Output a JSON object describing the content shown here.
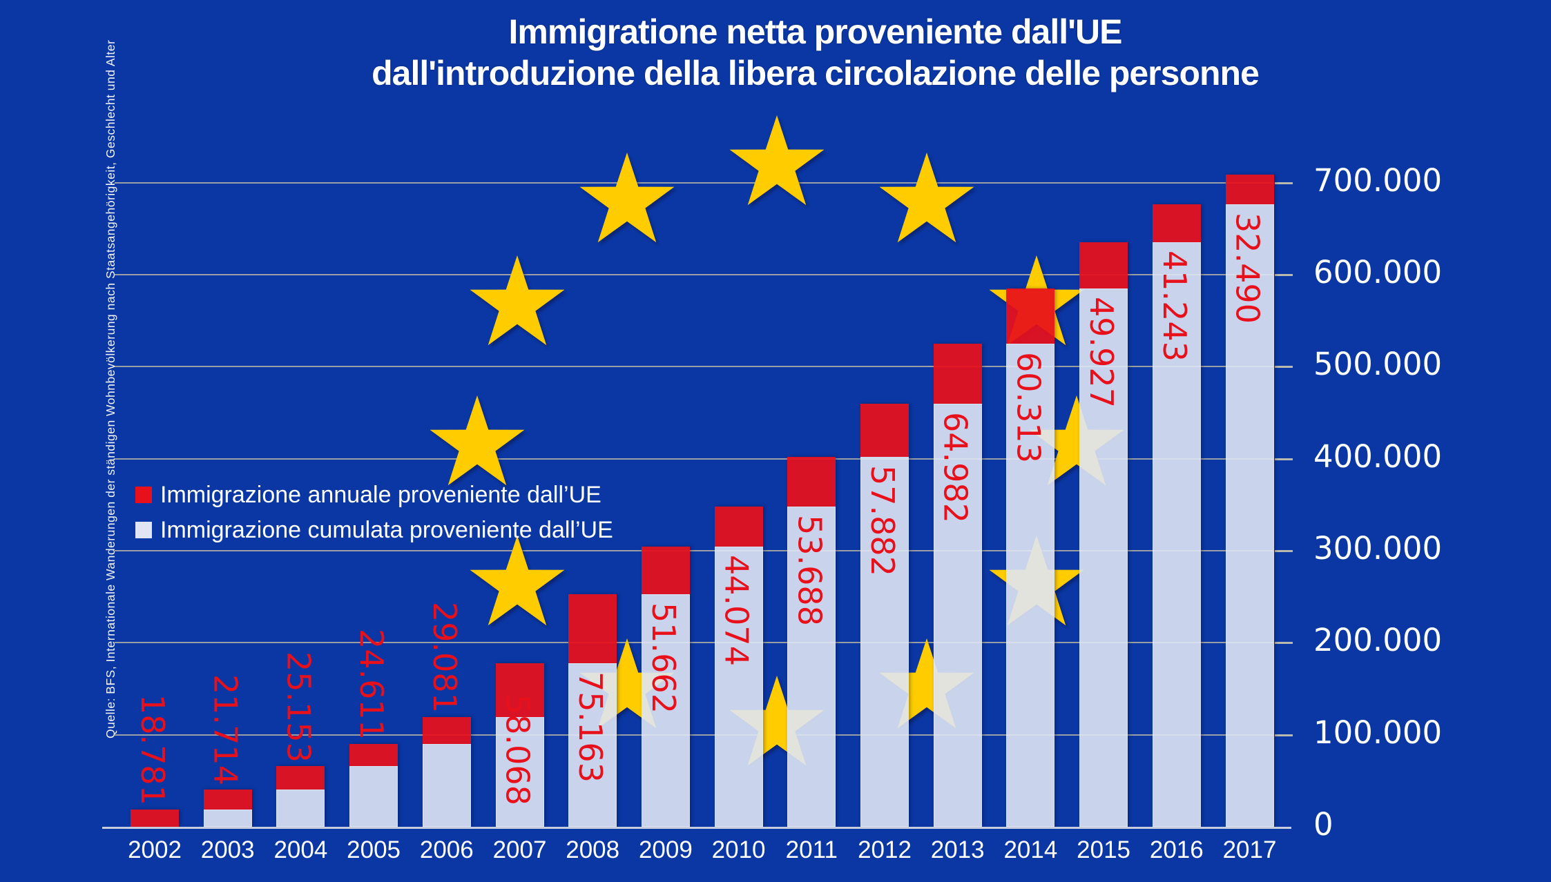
{
  "title": {
    "line1": "Immigratione netta proveniente dall'UE",
    "line2": "dall'introduzione della libera circolazione delle personne"
  },
  "source_note": "Quelle: BFS, Internationale Wanderungen der ständigen Wohnbevölkerung nach Staatsangehörigkeit, Geschlecht und Alter",
  "legend": {
    "items": [
      {
        "label": "Immigrazione annuale proveniente dall’UE",
        "swatch": "#e8101b"
      },
      {
        "label": "Immigrazione cumulata proveniente dall’UE",
        "swatch": "#dfe5f3"
      }
    ]
  },
  "colors": {
    "background": "#0a37a3",
    "annual_red": "#e8101b",
    "cumulative_white": "#dee5f4",
    "star_yellow": "#ffcc00",
    "gridline": "#c1bca2",
    "text_white": "#ffffff",
    "value_label_red": "#e8101b"
  },
  "y_axis": {
    "tick_labels": [
      "700.000",
      "600.000",
      "500.000",
      "400.000",
      "300.000",
      "200.000",
      "100.000",
      "0"
    ],
    "tick_values": [
      700000,
      600000,
      500000,
      400000,
      300000,
      200000,
      100000,
      0
    ]
  },
  "chart_data": {
    "type": "bar",
    "stacked": true,
    "title": "Immigratione netta proveniente dall'UE dall'introduzione della libera circolazione delle personne",
    "categories": [
      "2002",
      "2003",
      "2004",
      "2005",
      "2006",
      "2007",
      "2008",
      "2009",
      "2010",
      "2011",
      "2012",
      "2013",
      "2014",
      "2015",
      "2016",
      "2017"
    ],
    "series": [
      {
        "name": "Immigrazione annuale proveniente dall'UE",
        "color": "#e8101b",
        "values": [
          18781,
          21714,
          25153,
          24611,
          29081,
          58068,
          75163,
          51662,
          44074,
          53688,
          57882,
          64982,
          60313,
          49927,
          41243,
          32490
        ]
      },
      {
        "name": "Immigrazione cumulata proveniente dall'UE",
        "color": "#dee5f4",
        "values": [
          0,
          18781,
          40495,
          65648,
          90259,
          119340,
          177408,
          252571,
          304233,
          348307,
          401995,
          459877,
          524859,
          585172,
          635099,
          676342
        ]
      }
    ],
    "cumulative_totals": [
      18781,
      40495,
      65648,
      90259,
      119340,
      177408,
      252571,
      304233,
      348307,
      401995,
      459877,
      524859,
      585172,
      635099,
      676342,
      708832
    ],
    "value_labels": [
      "18.781",
      "21.714",
      "25.153",
      "24.611",
      "29.081",
      "58.068",
      "75.163",
      "51.662",
      "44.074",
      "53.688",
      "57.882",
      "64.982",
      "60.313",
      "49.927",
      "41.243",
      "32.490"
    ],
    "ylim": [
      0,
      700000
    ],
    "grid": true,
    "legend_position": "middle-left",
    "decoration": "EU flag circle of 12 yellow stars behind bars"
  }
}
